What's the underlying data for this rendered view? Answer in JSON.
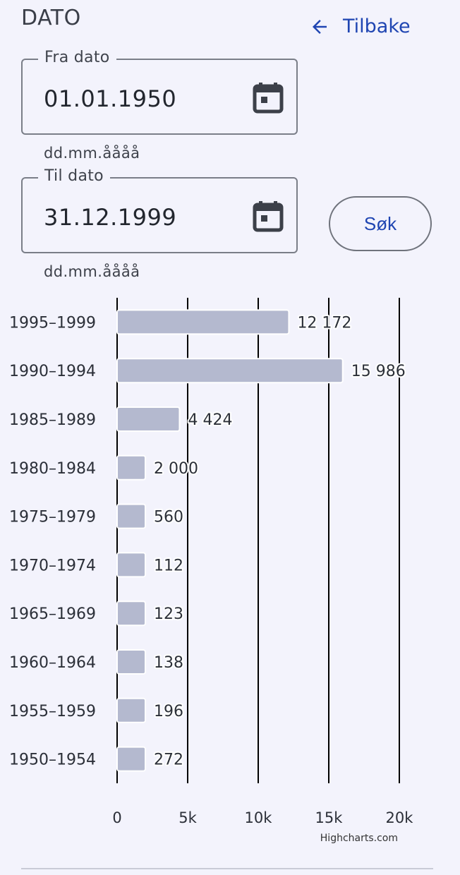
{
  "header": {
    "title": "DATO",
    "back_label": "Tilbake"
  },
  "filters": {
    "from": {
      "legend": "Fra dato",
      "value": "01.01.1950",
      "helper": "dd.mm.åååå"
    },
    "to": {
      "legend": "Til dato",
      "value": "31.12.1999",
      "helper": "dd.mm.åååå"
    },
    "search_label": "Søk"
  },
  "colors": {
    "accent": "#1f45b2",
    "bar": "#b4b9cf",
    "background": "#f3f3fc"
  },
  "icons": [
    "arrow-left-icon",
    "calendar-icon"
  ],
  "chart_data": {
    "type": "bar",
    "orientation": "horizontal",
    "categories": [
      "1995–1999",
      "1990–1994",
      "1985–1989",
      "1980–1984",
      "1975–1979",
      "1970–1974",
      "1965–1969",
      "1960–1964",
      "1955–1959",
      "1950–1954"
    ],
    "values": [
      12172,
      15986,
      4424,
      2000,
      560,
      112,
      123,
      138,
      196,
      272
    ],
    "value_labels": [
      "12 172",
      "15 986",
      "4 424",
      "2 000",
      "560",
      "112",
      "123",
      "138",
      "196",
      "272"
    ],
    "xlim": [
      0,
      20000
    ],
    "ticks": [
      0,
      5000,
      10000,
      15000,
      20000
    ],
    "tick_labels": [
      "0",
      "5k",
      "10k",
      "15k",
      "20k"
    ],
    "grid": true,
    "credits": "Highcharts.com"
  }
}
